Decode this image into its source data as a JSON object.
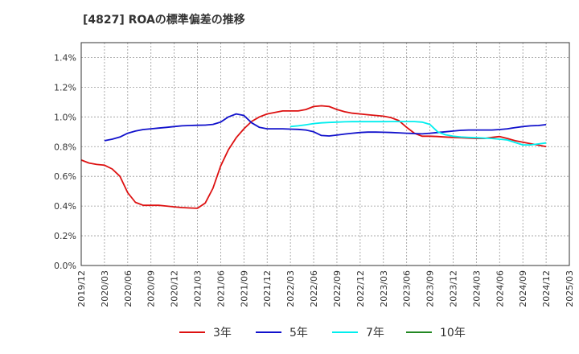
{
  "chart_data": {
    "type": "line",
    "title": "[4827]  ROAの標準偏差の推移",
    "xlabel": "",
    "ylabel": "",
    "ylim": [
      0,
      1.5
    ],
    "grid": true,
    "legend_position": "bottom",
    "y_ticks": [
      "0.0%",
      "0.2%",
      "0.4%",
      "0.6%",
      "0.8%",
      "1.0%",
      "1.2%",
      "1.4%"
    ],
    "y_tick_values": [
      0,
      0.2,
      0.4,
      0.6,
      0.8,
      1.0,
      1.2,
      1.4
    ],
    "x_ticks": [
      "2019/12",
      "2020/03",
      "2020/06",
      "2020/09",
      "2020/12",
      "2021/03",
      "2021/06",
      "2021/09",
      "2021/12",
      "2022/03",
      "2022/06",
      "2022/09",
      "2022/12",
      "2023/03",
      "2023/06",
      "2023/09",
      "2023/12",
      "2024/03",
      "2024/06",
      "2024/09",
      "2024/12",
      "2025/03"
    ],
    "x_range_months": [
      0,
      63
    ],
    "series": [
      {
        "name": "3年",
        "color": "#dd1111",
        "x_months": [
          0,
          1,
          2,
          3,
          4,
          5,
          6,
          7,
          8,
          9,
          10,
          11,
          12,
          13,
          14,
          15,
          16,
          17,
          18,
          19,
          20,
          21,
          22,
          23,
          24,
          25,
          26,
          27,
          28,
          29,
          30,
          31,
          32,
          33,
          34,
          35,
          36,
          37,
          38,
          39,
          40,
          41,
          42,
          43,
          44,
          45,
          46,
          47,
          48,
          49,
          50,
          51,
          52,
          53,
          54,
          55,
          56,
          57,
          58,
          59,
          60
        ],
        "values": [
          0.71,
          0.69,
          0.68,
          0.675,
          0.65,
          0.6,
          0.49,
          0.425,
          0.405,
          0.405,
          0.405,
          0.4,
          0.395,
          0.39,
          0.387,
          0.385,
          0.42,
          0.52,
          0.67,
          0.78,
          0.86,
          0.92,
          0.97,
          1.0,
          1.02,
          1.03,
          1.04,
          1.04,
          1.04,
          1.05,
          1.07,
          1.075,
          1.07,
          1.05,
          1.035,
          1.025,
          1.02,
          1.015,
          1.01,
          1.005,
          0.995,
          0.975,
          0.93,
          0.89,
          0.87,
          0.87,
          0.868,
          0.865,
          0.862,
          0.86,
          0.857,
          0.855,
          0.855,
          0.862,
          0.868,
          0.855,
          0.84,
          0.83,
          0.82,
          0.81,
          0.8
        ]
      },
      {
        "name": "5年",
        "color": "#1111cc",
        "x_months": [
          3,
          4,
          5,
          6,
          7,
          8,
          9,
          10,
          11,
          12,
          13,
          14,
          15,
          16,
          17,
          18,
          19,
          20,
          21,
          22,
          23,
          24,
          25,
          26,
          27,
          28,
          29,
          30,
          31,
          32,
          33,
          34,
          35,
          36,
          37,
          38,
          39,
          40,
          41,
          42,
          43,
          44,
          45,
          46,
          47,
          48,
          49,
          50,
          51,
          52,
          53,
          54,
          55,
          56,
          57,
          58,
          59,
          60
        ],
        "values": [
          0.84,
          0.85,
          0.865,
          0.89,
          0.905,
          0.915,
          0.92,
          0.925,
          0.93,
          0.935,
          0.94,
          0.942,
          0.944,
          0.945,
          0.95,
          0.965,
          1.0,
          1.02,
          1.01,
          0.96,
          0.93,
          0.92,
          0.92,
          0.92,
          0.918,
          0.916,
          0.912,
          0.9,
          0.875,
          0.872,
          0.878,
          0.885,
          0.89,
          0.895,
          0.898,
          0.898,
          0.897,
          0.895,
          0.893,
          0.89,
          0.888,
          0.886,
          0.89,
          0.895,
          0.9,
          0.905,
          0.91,
          0.912,
          0.912,
          0.912,
          0.912,
          0.915,
          0.92,
          0.928,
          0.935,
          0.94,
          0.942,
          0.948
        ]
      },
      {
        "name": "7年",
        "color": "#00eeee",
        "x_months": [
          27,
          28,
          29,
          30,
          31,
          32,
          33,
          34,
          35,
          36,
          37,
          38,
          39,
          40,
          41,
          42,
          43,
          44,
          45,
          46,
          47,
          48,
          49,
          50,
          51,
          52,
          53,
          54,
          55,
          56,
          57,
          58,
          59,
          60
        ],
        "values": [
          0.935,
          0.94,
          0.947,
          0.955,
          0.96,
          0.963,
          0.965,
          0.967,
          0.968,
          0.968,
          0.968,
          0.968,
          0.968,
          0.969,
          0.969,
          0.969,
          0.969,
          0.965,
          0.95,
          0.9,
          0.88,
          0.87,
          0.865,
          0.862,
          0.86,
          0.857,
          0.855,
          0.85,
          0.845,
          0.828,
          0.812,
          0.812,
          0.818,
          0.825
        ]
      },
      {
        "name": "10年",
        "color": "#228822",
        "x_months": [],
        "values": []
      }
    ]
  }
}
